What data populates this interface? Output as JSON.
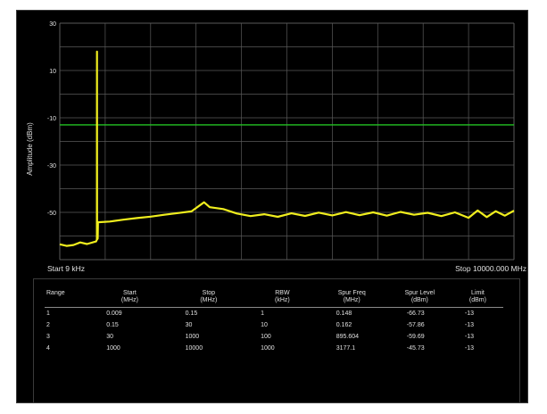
{
  "chart_data": {
    "type": "line",
    "ylabel": "Amplitude (dBm)",
    "xlabel_start": "Start 9 kHz",
    "xlabel_stop": "Stop 10000.000 MHz",
    "y_ticks": [
      "30",
      "10",
      "-10",
      "-30",
      "-50"
    ],
    "ylim": [
      -70,
      30
    ],
    "xlim_mhz": [
      0.009,
      10000
    ],
    "grid": true,
    "limit_line": {
      "value_dbm": -13,
      "color": "#22c322"
    },
    "trace_color": "#f0ee1e",
    "series": [
      {
        "points": [
          [
            0,
            -63.5
          ],
          [
            150,
            -64.2
          ],
          [
            300,
            -63.8
          ],
          [
            450,
            -62.7
          ],
          [
            600,
            -63.4
          ],
          [
            800,
            -62.3
          ],
          [
            818,
            -61.5
          ],
          [
            820,
            18
          ],
          [
            822,
            -61.5
          ],
          [
            835,
            -61.0
          ],
          [
            840,
            -54.2
          ],
          [
            1100,
            -53.9
          ],
          [
            1400,
            -53.1
          ],
          [
            1700,
            -52.4
          ],
          [
            2000,
            -51.8
          ],
          [
            2300,
            -51.0
          ],
          [
            2600,
            -50.3
          ],
          [
            2900,
            -49.6
          ],
          [
            3177.1,
            -45.73
          ],
          [
            3300,
            -47.8
          ],
          [
            3600,
            -48.6
          ],
          [
            3900,
            -50.5
          ],
          [
            4200,
            -51.6
          ],
          [
            4500,
            -50.8
          ],
          [
            4800,
            -51.9
          ],
          [
            5100,
            -50.4
          ],
          [
            5400,
            -51.5
          ],
          [
            5700,
            -50.1
          ],
          [
            6000,
            -51.3
          ],
          [
            6300,
            -49.9
          ],
          [
            6600,
            -51.2
          ],
          [
            6900,
            -50.0
          ],
          [
            7200,
            -51.4
          ],
          [
            7500,
            -49.8
          ],
          [
            7800,
            -51.0
          ],
          [
            8100,
            -50.2
          ],
          [
            8400,
            -51.6
          ],
          [
            8700,
            -50.0
          ],
          [
            9000,
            -52.3
          ],
          [
            9200,
            -49.2
          ],
          [
            9400,
            -52.0
          ],
          [
            9600,
            -49.5
          ],
          [
            9800,
            -51.4
          ],
          [
            10000,
            -49.3
          ]
        ]
      }
    ]
  },
  "table": {
    "headers": [
      {
        "line1": "Range",
        "line2": ""
      },
      {
        "line1": "Start",
        "line2": "(MHz)"
      },
      {
        "line1": "Stop",
        "line2": "(MHz)"
      },
      {
        "line1": "RBW",
        "line2": "(kHz)"
      },
      {
        "line1": "Spur Freq",
        "line2": "(MHz)"
      },
      {
        "line1": "Spur Level",
        "line2": "(dBm)"
      },
      {
        "line1": "Limit",
        "line2": "(dBm)"
      }
    ],
    "rows": [
      [
        "1",
        "0.009",
        "0.15",
        "1",
        "0.148",
        "-66.73",
        "-13"
      ],
      [
        "2",
        "0.15",
        "30",
        "10",
        "0.162",
        "-57.86",
        "-13"
      ],
      [
        "3",
        "30",
        "1000",
        "100",
        "895.604",
        "-59.69",
        "-13"
      ],
      [
        "4",
        "1000",
        "10000",
        "1000",
        "3177.1",
        "-45.73",
        "-13"
      ]
    ]
  },
  "colors": {
    "background": "#000000",
    "grid": "#5a5a5a",
    "text": "#e0e0e0",
    "trace": "#f0ee1e",
    "limit": "#22c322"
  }
}
